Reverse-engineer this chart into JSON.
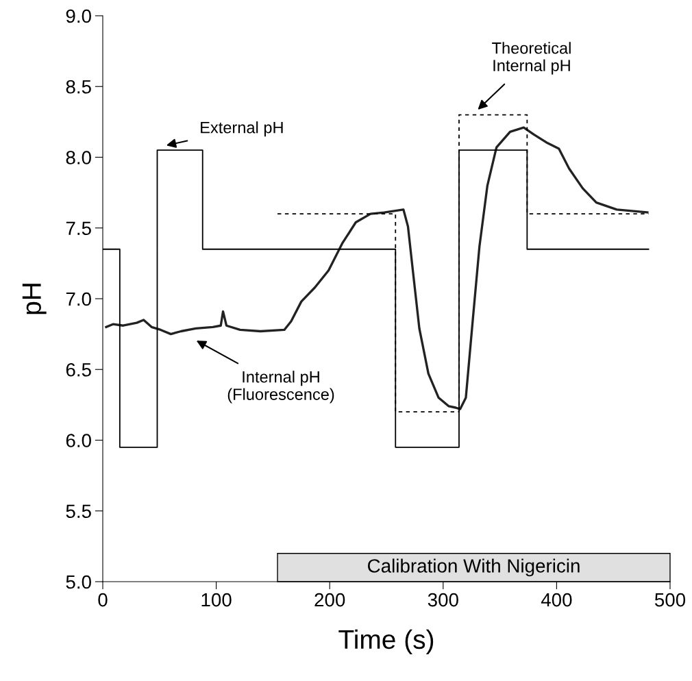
{
  "chart_data": {
    "type": "line",
    "xlabel": "Time (s)",
    "ylabel": "pH",
    "xlim": [
      0,
      500
    ],
    "ylim": [
      5.0,
      9.0
    ],
    "xticks": [
      0,
      100,
      200,
      300,
      400,
      500
    ],
    "yticks": [
      {
        "value": 5.0,
        "label": "5.0"
      },
      {
        "value": 5.5,
        "label": "5.5"
      },
      {
        "value": 6.0,
        "label": "6.0"
      },
      {
        "value": 6.5,
        "label": "6.5"
      },
      {
        "value": 7.0,
        "label": "7.0"
      },
      {
        "value": 7.5,
        "label": "7.5"
      },
      {
        "value": 8.0,
        "label": "8.0"
      },
      {
        "value": 8.5,
        "label": "8.5"
      },
      {
        "value": 9.0,
        "label": "9.0"
      }
    ],
    "grid": false,
    "legend": false,
    "series": [
      {
        "color": "#222222",
        "line_style": "solid",
        "x": [
          3,
          9,
          18,
          30,
          36,
          43,
          51,
          60,
          69,
          82,
          97,
          104,
          106,
          109,
          121,
          139,
          160,
          166,
          175,
          187,
          199,
          211,
          223,
          236,
          248,
          257,
          265,
          269,
          273,
          279,
          287,
          296,
          305,
          311,
          315,
          320,
          326,
          332,
          339,
          347,
          359,
          371,
          380,
          392,
          402,
          411,
          423,
          435,
          453,
          480
        ],
        "values": [
          6.8,
          6.82,
          6.81,
          6.83,
          6.85,
          6.8,
          6.78,
          6.75,
          6.77,
          6.79,
          6.8,
          6.81,
          6.91,
          6.81,
          6.78,
          6.77,
          6.78,
          6.84,
          6.98,
          7.08,
          7.2,
          7.39,
          7.54,
          7.6,
          7.61,
          7.62,
          7.63,
          7.51,
          7.22,
          6.79,
          6.47,
          6.3,
          6.24,
          6.23,
          6.22,
          6.3,
          6.84,
          7.37,
          7.8,
          8.07,
          8.18,
          8.21,
          8.16,
          8.1,
          8.06,
          7.92,
          7.78,
          7.68,
          7.63,
          7.61
        ]
      },
      {
        "type": "step",
        "color": "#000000",
        "line_style": "solid",
        "x": [
          0,
          15,
          48,
          88,
          258,
          314,
          374,
          481
        ],
        "values": [
          7.35,
          5.95,
          8.05,
          7.35,
          5.95,
          8.05,
          7.35,
          7.35
        ]
      },
      {
        "type": "step",
        "color": "#000000",
        "line_style": "dashed",
        "x": [
          154,
          258,
          314,
          374,
          481
        ],
        "values": [
          7.6,
          6.2,
          8.3,
          7.6,
          7.6
        ]
      }
    ],
    "bands": [
      {
        "axis": "x",
        "from": 154,
        "to": 500,
        "label": "Calibration With Nigericin",
        "color": "#e0e0e0"
      }
    ],
    "annotations": [
      "External pH",
      "Theoretical\nInternal pH",
      "Internal pH\n(Fluorescence)"
    ]
  }
}
